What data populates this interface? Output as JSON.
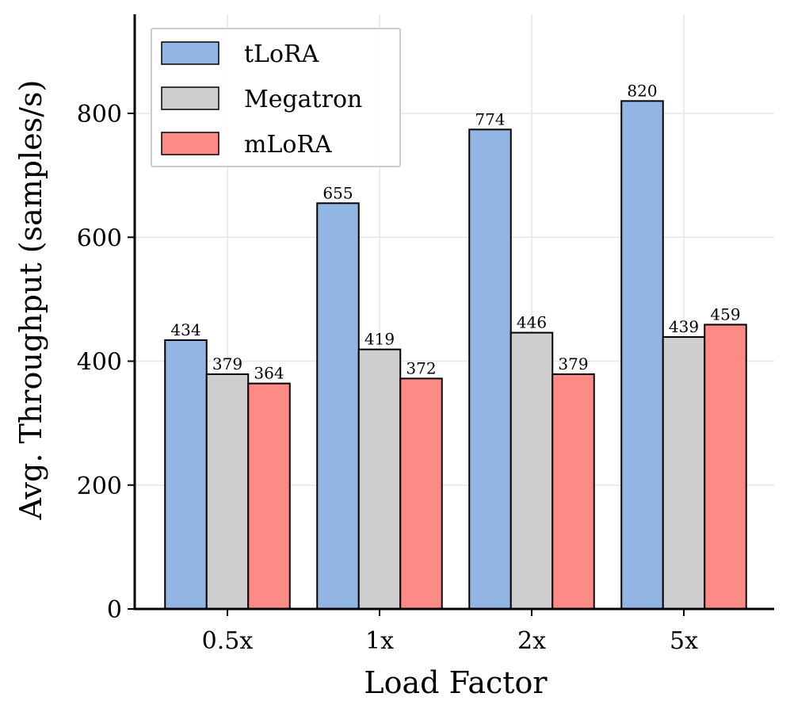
{
  "chart_data": {
    "type": "bar",
    "categories": [
      "0.5x",
      "1x",
      "2x",
      "5x"
    ],
    "series": [
      {
        "name": "tLoRA",
        "values": [
          434,
          655,
          774,
          820
        ],
        "color": "#92b6e3"
      },
      {
        "name": "Megatron",
        "values": [
          379,
          419,
          446,
          439
        ],
        "color": "#cfcfcf"
      },
      {
        "name": "mLoRA",
        "values": [
          364,
          372,
          379,
          459
        ],
        "color": "#fd8a87"
      }
    ],
    "title": "",
    "xlabel": "Load Factor",
    "ylabel": "Avg. Throughput (samples/s)",
    "ylim": [
      0,
      960
    ],
    "yticks": [
      0,
      200,
      400,
      600,
      800
    ],
    "grid": true,
    "legend_position": "top-left"
  }
}
